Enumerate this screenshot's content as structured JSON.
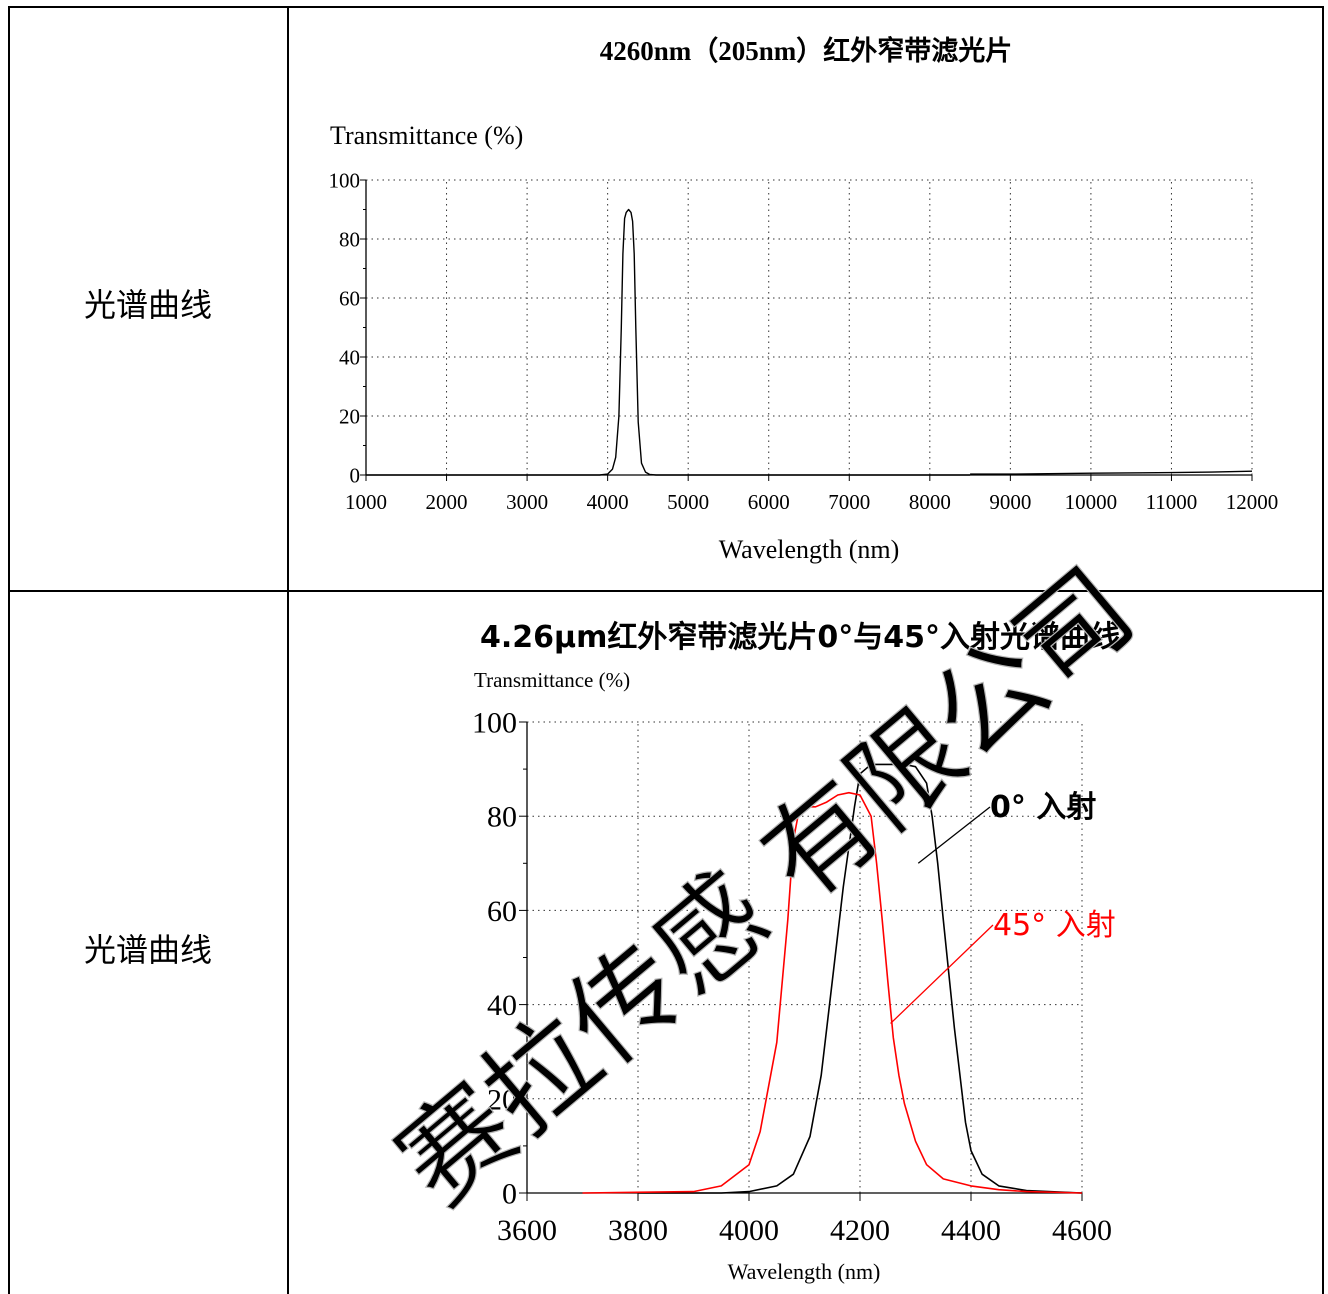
{
  "rows": [
    {
      "label": "光谱曲线"
    },
    {
      "label": "光谱曲线"
    }
  ],
  "watermark": "赛拉传感 有限公司",
  "chart_data": [
    {
      "type": "line",
      "title": "4260nm（205nm）红外窄带滤光片",
      "ylabel": "Transmittance (%)",
      "xlabel": "Wavelength (nm)",
      "xlim": [
        1000,
        12000
      ],
      "ylim": [
        0,
        100
      ],
      "xticks": [
        "1000",
        "2000",
        "3000",
        "4000",
        "5000",
        "6000",
        "7000",
        "8000",
        "9000",
        "10000",
        "11000",
        "12000"
      ],
      "yticks": [
        "0",
        "20",
        "40",
        "60",
        "80",
        "100"
      ],
      "grid": true,
      "series": [
        {
          "color": "#000000",
          "x": [
            1000,
            3900,
            4000,
            4060,
            4100,
            4140,
            4170,
            4190,
            4210,
            4230,
            4260,
            4290,
            4310,
            4330,
            4350,
            4380,
            4420,
            4470,
            4520,
            4600,
            8500
          ],
          "y": [
            0,
            0,
            0.3,
            2,
            6,
            20,
            50,
            75,
            87,
            89,
            90,
            89,
            86,
            75,
            50,
            18,
            4,
            1,
            0.2,
            0,
            0
          ]
        },
        {
          "color": "#000000",
          "x": [
            8500,
            9000,
            10000,
            11000,
            11500,
            12000
          ],
          "y": [
            0.3,
            0.3,
            0.6,
            0.8,
            1.0,
            1.3
          ]
        }
      ]
    },
    {
      "type": "line",
      "title": "4.26μm红外窄带滤光片0°与45°入射光谱曲线",
      "ylabel": "Transmittance (%)",
      "xlabel": "Wavelength (nm)",
      "xlim": [
        3600,
        4600
      ],
      "ylim": [
        0,
        100
      ],
      "xticks": [
        "3600",
        "3800",
        "4000",
        "4200",
        "4400",
        "4600"
      ],
      "yticks": [
        "0",
        "20",
        "40",
        "60",
        "80",
        "100"
      ],
      "grid": true,
      "annotations": [
        "0° 入射",
        "45° 入射"
      ],
      "series": [
        {
          "name": "0° 入射",
          "color": "#000000",
          "x": [
            3800,
            3950,
            4000,
            4050,
            4080,
            4110,
            4130,
            4150,
            4170,
            4190,
            4200,
            4220,
            4250,
            4280,
            4300,
            4320,
            4330,
            4340,
            4350,
            4370,
            4390,
            4400,
            4420,
            4450,
            4500,
            4600
          ],
          "y": [
            0,
            0,
            0.3,
            1.5,
            4,
            12,
            25,
            45,
            65,
            82,
            89,
            91,
            91,
            91,
            90.5,
            87,
            80,
            70,
            58,
            35,
            15,
            9,
            4,
            1.5,
            0.5,
            0
          ]
        },
        {
          "name": "45° 入射",
          "color": "#ff0000",
          "x": [
            3700,
            3900,
            3950,
            4000,
            4020,
            4050,
            4070,
            4080,
            4090,
            4100,
            4120,
            4140,
            4160,
            4180,
            4200,
            4220,
            4230,
            4240,
            4250,
            4260,
            4270,
            4280,
            4300,
            4320,
            4350,
            4400,
            4450,
            4500,
            4600
          ],
          "y": [
            0,
            0.3,
            1.5,
            6,
            13,
            32,
            58,
            75,
            81,
            82,
            82,
            83,
            84.5,
            85,
            84.5,
            80,
            70,
            58,
            45,
            33,
            25,
            19,
            11,
            6,
            3,
            1.5,
            0.7,
            0.3,
            0
          ]
        }
      ]
    }
  ]
}
